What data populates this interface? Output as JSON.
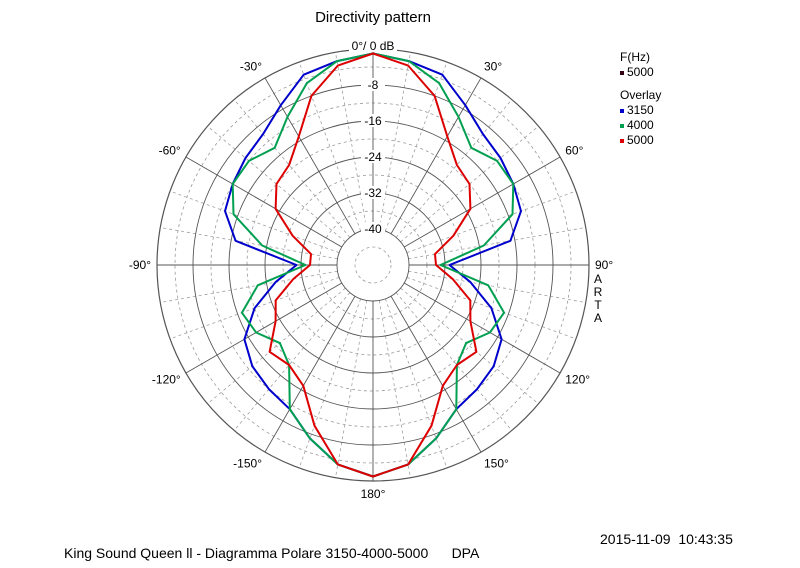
{
  "chart_data": {
    "type": "polar-line",
    "title": "Directivity pattern",
    "radial_unit_label": "0°/ 0 dB",
    "radial_range_db": [
      -48,
      0
    ],
    "radial_ticks": [
      "-8",
      "-16",
      "-24",
      "-32",
      "-40"
    ],
    "radial_tick_values": [
      -8,
      -16,
      -24,
      -32,
      -40
    ],
    "angle_tick_labels": [
      {
        "angle": -150,
        "label": "-150°"
      },
      {
        "angle": -120,
        "label": "-120°"
      },
      {
        "angle": -90,
        "label": "-90°"
      },
      {
        "angle": -60,
        "label": "-60°"
      },
      {
        "angle": -30,
        "label": "-30°"
      },
      {
        "angle": 30,
        "label": "30°"
      },
      {
        "angle": 60,
        "label": "60°"
      },
      {
        "angle": 90,
        "label": "90°"
      },
      {
        "angle": 120,
        "label": "120°"
      },
      {
        "angle": 150,
        "label": "150°"
      },
      {
        "angle": 180,
        "label": "180°"
      }
    ],
    "angles_deg": [
      0,
      10,
      20,
      30,
      40,
      50,
      60,
      70,
      80,
      90,
      100,
      110,
      120,
      130,
      140,
      150,
      160,
      170,
      180
    ],
    "series": [
      {
        "name": "3150",
        "color": "#0000cc",
        "values_db": [
          -1,
          -2,
          -3,
          -7,
          -10,
          -11,
          -12,
          -13,
          -17,
          -31,
          -26,
          -20,
          -15,
          -13,
          -12,
          -11,
          -7,
          -3,
          -1
        ]
      },
      {
        "name": "4000",
        "color": "#00a050",
        "values_db": [
          -1,
          -2,
          -5,
          -10,
          -14,
          -12,
          -12,
          -15,
          -23,
          -33,
          -22,
          -17,
          -18,
          -21,
          -19,
          -11,
          -7,
          -3,
          -1
        ]
      },
      {
        "name": "5000",
        "color": "#dd0000",
        "values_db": [
          -1,
          -3,
          -8,
          -15,
          -19,
          -20,
          -23,
          -29,
          -34,
          -34,
          -30,
          -25,
          -23,
          -18,
          -19,
          -17,
          -10,
          -3,
          -1
        ]
      }
    ],
    "legend": {
      "header": "F(Hz)",
      "primary": {
        "label": "5000",
        "color": "#330011"
      },
      "overlay_header": "Overlay",
      "entries": [
        {
          "label": "3150",
          "color": "#0000cc"
        },
        {
          "label": "4000",
          "color": "#00a050"
        },
        {
          "label": "5000",
          "color": "#dd0000"
        }
      ]
    },
    "grid": true
  },
  "side_brand": [
    "A",
    "R",
    "T",
    "A"
  ],
  "timestamp": "2015-11-09  10:43:35",
  "footer_caption": "King Sound Queen ll - Diagramma Polare 3150-4000-5000      DPA"
}
